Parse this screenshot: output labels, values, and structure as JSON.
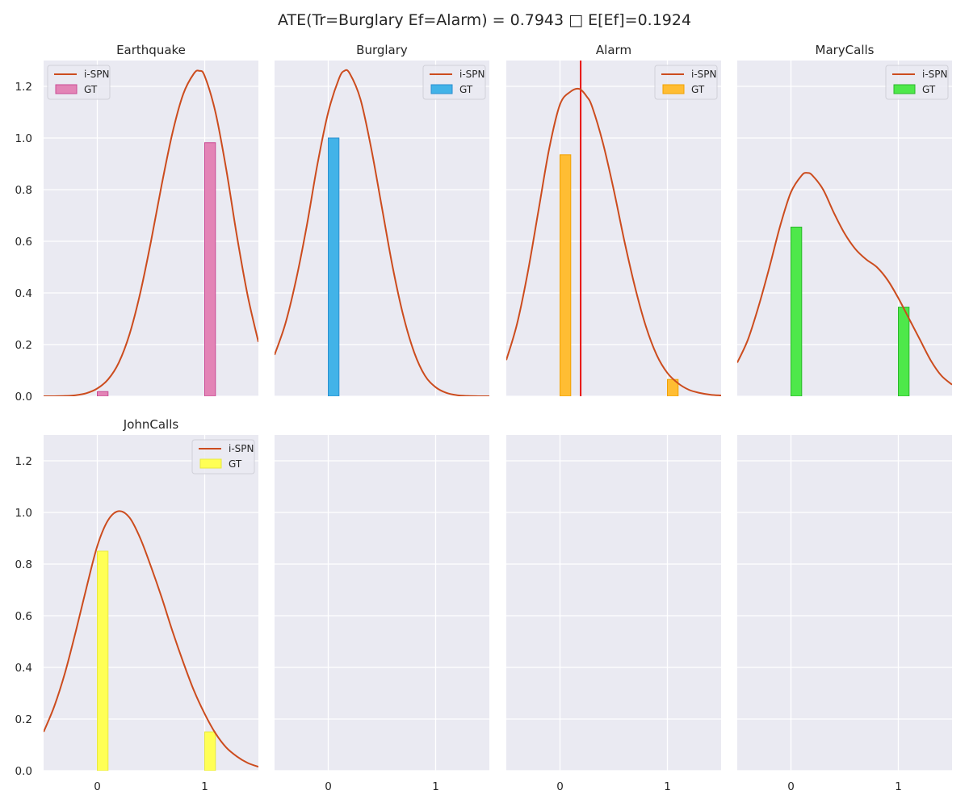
{
  "suptitle": "ATE(Tr=Burglary Ef=Alarm) = 0.7943 □ E[Ef]=0.1924",
  "colors": {
    "background": "#eaeaf2",
    "grid": "#ffffff",
    "curve": "#cc4c1e",
    "marker": "#e8110f"
  },
  "chart_data": [
    {
      "type": "bar+line",
      "title": "Earthquake",
      "xlim": [
        -0.5,
        1.5
      ],
      "ylim": [
        0,
        1.3
      ],
      "xticks": [
        "0",
        "1"
      ],
      "yticks": [
        "0.0",
        "0.2",
        "0.4",
        "0.6",
        "0.8",
        "1.0",
        "1.2"
      ],
      "legend": {
        "position": "top-left",
        "entries": [
          "i-SPN",
          "GT"
        ]
      },
      "gt": {
        "name": "GT",
        "x": [
          0,
          1
        ],
        "values": [
          0.018,
          0.982
        ],
        "color": "#e384b6",
        "edge": "#c94b94"
      },
      "ispn": {
        "name": "i-SPN",
        "x": [
          -0.5,
          -0.4,
          -0.3,
          -0.2,
          -0.1,
          0,
          0.1,
          0.2,
          0.3,
          0.4,
          0.5,
          0.6,
          0.7,
          0.8,
          0.9,
          0.95,
          1,
          1.1,
          1.2,
          1.3,
          1.4,
          1.5
        ],
        "y": [
          0,
          0,
          0.001,
          0.004,
          0.012,
          0.03,
          0.065,
          0.13,
          0.24,
          0.4,
          0.6,
          0.82,
          1.02,
          1.17,
          1.25,
          1.26,
          1.24,
          1.1,
          0.88,
          0.62,
          0.39,
          0.21
        ]
      }
    },
    {
      "type": "bar+line",
      "title": "Burglary",
      "xlim": [
        -0.5,
        1.5
      ],
      "ylim": [
        0,
        1.3
      ],
      "xticks": [
        "0",
        "1"
      ],
      "yticks": [],
      "legend": {
        "position": "top-right",
        "entries": [
          "i-SPN",
          "GT"
        ]
      },
      "gt": {
        "name": "GT",
        "x": [
          0,
          1
        ],
        "values": [
          1.0,
          0.0
        ],
        "color": "#42b3e8",
        "edge": "#2a8fd0"
      },
      "ispn": {
        "name": "i-SPN",
        "x": [
          -0.5,
          -0.4,
          -0.3,
          -0.2,
          -0.1,
          0,
          0.1,
          0.15,
          0.2,
          0.3,
          0.4,
          0.5,
          0.6,
          0.7,
          0.8,
          0.9,
          1,
          1.1,
          1.2,
          1.3,
          1.4,
          1.5
        ],
        "y": [
          0.16,
          0.28,
          0.45,
          0.66,
          0.9,
          1.1,
          1.23,
          1.26,
          1.25,
          1.15,
          0.96,
          0.73,
          0.5,
          0.31,
          0.17,
          0.08,
          0.035,
          0.013,
          0.004,
          0.001,
          0,
          0
        ]
      }
    },
    {
      "type": "bar+line",
      "title": "Alarm",
      "xlim": [
        -0.5,
        1.5
      ],
      "ylim": [
        0,
        1.3
      ],
      "xticks": [
        "0",
        "1"
      ],
      "yticks": [],
      "legend": {
        "position": "top-right",
        "entries": [
          "i-SPN",
          "GT"
        ]
      },
      "marker_line": {
        "x": 0.1924
      },
      "gt": {
        "name": "GT",
        "x": [
          0,
          1
        ],
        "values": [
          0.935,
          0.065
        ],
        "color": "#ffbd33",
        "edge": "#f2a100"
      },
      "ispn": {
        "name": "i-SPN",
        "x": [
          -0.5,
          -0.4,
          -0.3,
          -0.2,
          -0.1,
          0,
          0.1,
          0.18,
          0.25,
          0.3,
          0.4,
          0.5,
          0.6,
          0.7,
          0.8,
          0.9,
          1,
          1.1,
          1.2,
          1.3,
          1.4,
          1.5
        ],
        "y": [
          0.14,
          0.28,
          0.48,
          0.72,
          0.96,
          1.13,
          1.18,
          1.19,
          1.16,
          1.12,
          0.98,
          0.8,
          0.6,
          0.42,
          0.27,
          0.16,
          0.09,
          0.05,
          0.025,
          0.013,
          0.006,
          0.003
        ]
      }
    },
    {
      "type": "bar+line",
      "title": "MaryCalls",
      "xlim": [
        -0.5,
        1.5
      ],
      "ylim": [
        0,
        1.3
      ],
      "xticks": [
        "0",
        "1"
      ],
      "yticks": [],
      "legend": {
        "position": "top-right",
        "entries": [
          "i-SPN",
          "GT"
        ]
      },
      "gt": {
        "name": "GT",
        "x": [
          0,
          1
        ],
        "values": [
          0.655,
          0.345
        ],
        "color": "#4ee84a",
        "edge": "#2ab82a"
      },
      "ispn": {
        "name": "i-SPN",
        "x": [
          -0.5,
          -0.4,
          -0.3,
          -0.2,
          -0.1,
          0,
          0.1,
          0.15,
          0.2,
          0.3,
          0.4,
          0.5,
          0.6,
          0.7,
          0.8,
          0.9,
          1,
          1.1,
          1.2,
          1.3,
          1.4,
          1.5
        ],
        "y": [
          0.13,
          0.22,
          0.35,
          0.5,
          0.66,
          0.79,
          0.855,
          0.865,
          0.855,
          0.8,
          0.71,
          0.63,
          0.57,
          0.53,
          0.5,
          0.45,
          0.38,
          0.3,
          0.22,
          0.14,
          0.08,
          0.045
        ]
      }
    },
    {
      "type": "bar+line",
      "title": "JohnCalls",
      "xlim": [
        -0.5,
        1.5
      ],
      "ylim": [
        0,
        1.3
      ],
      "xticks": [
        "0",
        "1"
      ],
      "yticks": [
        "0.0",
        "0.2",
        "0.4",
        "0.6",
        "0.8",
        "1.0",
        "1.2"
      ],
      "legend": {
        "position": "top-right",
        "entries": [
          "i-SPN",
          "GT"
        ]
      },
      "gt": {
        "name": "GT",
        "x": [
          0,
          1
        ],
        "values": [
          0.85,
          0.15
        ],
        "color": "#ffff55",
        "edge": "#e8e840"
      },
      "ispn": {
        "name": "i-SPN",
        "x": [
          -0.5,
          -0.4,
          -0.3,
          -0.2,
          -0.1,
          0,
          0.1,
          0.2,
          0.3,
          0.4,
          0.5,
          0.6,
          0.7,
          0.8,
          0.9,
          1,
          1.1,
          1.2,
          1.3,
          1.4,
          1.5
        ],
        "y": [
          0.15,
          0.25,
          0.38,
          0.54,
          0.71,
          0.87,
          0.97,
          1.005,
          0.98,
          0.9,
          0.79,
          0.67,
          0.54,
          0.42,
          0.31,
          0.22,
          0.145,
          0.09,
          0.055,
          0.03,
          0.015
        ]
      }
    },
    {
      "type": "empty",
      "title": "",
      "xlim": [
        -0.5,
        1.5
      ],
      "ylim": [
        0,
        1.3
      ],
      "xticks": [
        "0",
        "1"
      ],
      "yticks": []
    },
    {
      "type": "empty",
      "title": "",
      "xlim": [
        -0.5,
        1.5
      ],
      "ylim": [
        0,
        1.3
      ],
      "xticks": [
        "0",
        "1"
      ],
      "yticks": []
    },
    {
      "type": "empty",
      "title": "",
      "xlim": [
        -0.5,
        1.5
      ],
      "ylim": [
        0,
        1.3
      ],
      "xticks": [
        "0",
        "1"
      ],
      "yticks": []
    }
  ]
}
